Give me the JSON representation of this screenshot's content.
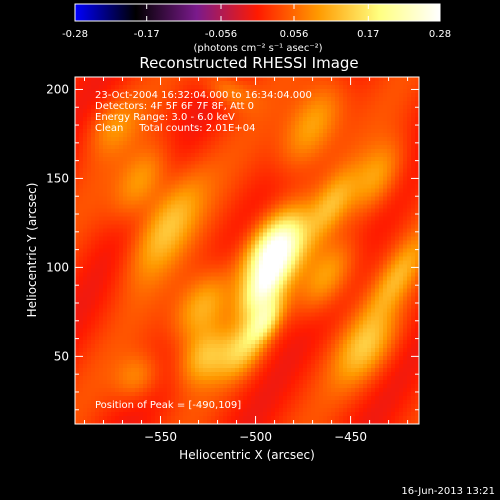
{
  "chart_data": {
    "type": "heatmap",
    "title": "Reconstructed RHESSI Image",
    "xlabel": "Heliocentric X (arcsec)",
    "ylabel": "Heliocentric Y (arcsec)",
    "xlim": [
      -595,
      -414
    ],
    "ylim": [
      12,
      207
    ],
    "x_ticks": [
      -550,
      -500,
      -450
    ],
    "y_ticks": [
      50,
      100,
      150,
      200
    ],
    "colorbar": {
      "unit_label": "(photons cm⁻² s⁻¹ asec⁻²)",
      "range": [
        -0.28,
        0.28
      ],
      "ticks": [
        {
          "value": -0.28,
          "label": "-0.28"
        },
        {
          "value": -0.17,
          "label": "-0.17"
        },
        {
          "value": -0.056,
          "label": "-0.056"
        },
        {
          "value": 0.056,
          "label": "0.056"
        },
        {
          "value": 0.17,
          "label": "0.17"
        },
        {
          "value": 0.28,
          "label": "0.28"
        }
      ],
      "colors": [
        "#0000ff",
        "#000000",
        "#7a1a8c",
        "#ff1a00",
        "#ff9a00",
        "#ffff80",
        "#ffffff"
      ]
    },
    "annotations": [
      "23-Oct-2004 16:32:04.000 to 16:34:04.000",
      "Detectors: 4F 5F 6F 7F 8F, Att 0",
      "Energy Range: 3.0 - 6.0 keV",
      "Clean     Total counts: 2.01E+04"
    ],
    "peak_label": "Position of Peak = [-490,109]",
    "peak": {
      "x": -490,
      "y": 109,
      "value": 0.28
    },
    "blobs": [
      {
        "x": -490,
        "y": 109,
        "value": 0.28,
        "rx": 9,
        "ry": 16,
        "angle": 28
      },
      {
        "x": -497,
        "y": 86,
        "value": 0.13,
        "rx": 6,
        "ry": 12,
        "angle": 30
      },
      {
        "x": -495,
        "y": 70,
        "value": 0.14,
        "rx": 5,
        "ry": 10,
        "angle": 30
      },
      {
        "x": -507,
        "y": 53,
        "value": 0.1,
        "rx": 7,
        "ry": 12,
        "angle": 30
      },
      {
        "x": -547,
        "y": 123,
        "value": 0.11,
        "rx": 9,
        "ry": 22,
        "angle": 28
      },
      {
        "x": -560,
        "y": 148,
        "value": 0.09,
        "rx": 8,
        "ry": 16,
        "angle": 28
      },
      {
        "x": -528,
        "y": 78,
        "value": 0.12,
        "rx": 9,
        "ry": 16,
        "angle": 30
      },
      {
        "x": -527,
        "y": 50,
        "value": 0.1,
        "rx": 8,
        "ry": 12,
        "angle": 30
      },
      {
        "x": -470,
        "y": 180,
        "value": 0.11,
        "rx": 9,
        "ry": 20,
        "angle": 28
      },
      {
        "x": -462,
        "y": 95,
        "value": 0.1,
        "rx": 8,
        "ry": 16,
        "angle": 30
      },
      {
        "x": -460,
        "y": 135,
        "value": 0.08,
        "rx": 6,
        "ry": 14,
        "angle": 28
      },
      {
        "x": -436,
        "y": 150,
        "value": 0.09,
        "rx": 8,
        "ry": 16,
        "angle": 28
      },
      {
        "x": -442,
        "y": 55,
        "value": 0.1,
        "rx": 9,
        "ry": 16,
        "angle": 30
      },
      {
        "x": -425,
        "y": 95,
        "value": 0.08,
        "rx": 6,
        "ry": 18,
        "angle": 30
      },
      {
        "x": -562,
        "y": 38,
        "value": 0.07,
        "rx": 8,
        "ry": 10,
        "angle": 30
      },
      {
        "x": -575,
        "y": 180,
        "value": 0.06,
        "rx": 8,
        "ry": 12,
        "angle": 30
      },
      {
        "x": -515,
        "y": 200,
        "value": 0.07,
        "rx": 10,
        "ry": 6,
        "angle": 30
      }
    ]
  },
  "footer": {
    "timestamp": "16-Jun-2013 13:21"
  }
}
